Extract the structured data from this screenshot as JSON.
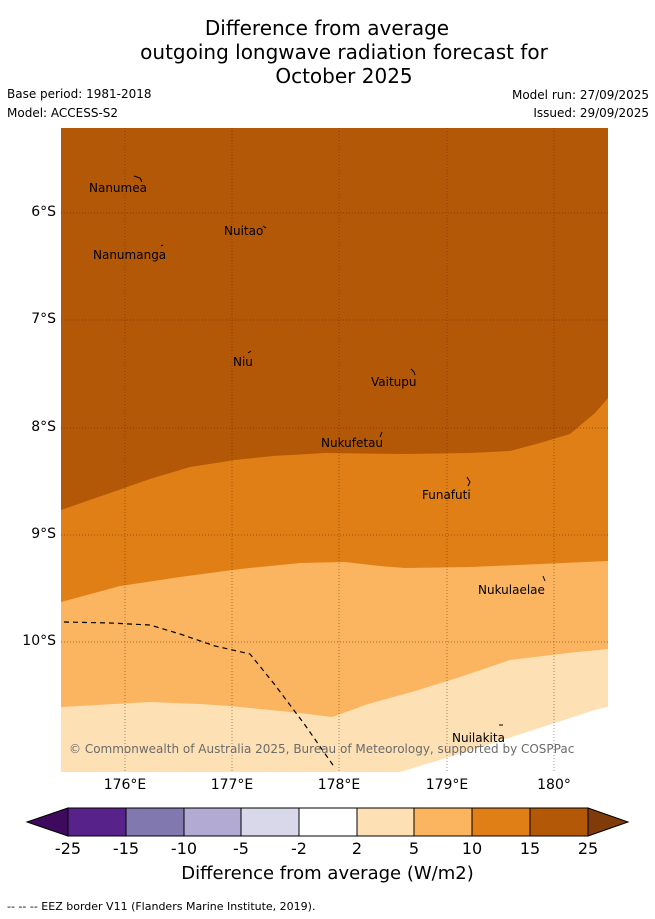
{
  "header": {
    "title_lines": [
      "Difference from average",
      "outgoing longwave radiation forecast for",
      "October 2025"
    ],
    "base_period": "Base period: 1981-2018",
    "model": "Model: ACCESS-S2",
    "model_run": "Model run: 27/09/2025",
    "issued": "Issued: 29/09/2025"
  },
  "map": {
    "y_ticks": [
      "6°S",
      "7°S",
      "8°S",
      "9°S",
      "10°S"
    ],
    "x_ticks": [
      "176°E",
      "177°E",
      "178°E",
      "179°E",
      "180°"
    ],
    "places": [
      {
        "name": "Nanumea"
      },
      {
        "name": "Nuitao"
      },
      {
        "name": "Nanumanga"
      },
      {
        "name": "Niu"
      },
      {
        "name": "Vaitupu"
      },
      {
        "name": "Nukufetau"
      },
      {
        "name": "Funafuti"
      },
      {
        "name": "Nukulaelae"
      },
      {
        "name": "Nuilakita"
      }
    ],
    "copyright": "© Commonwealth of Australia 2025, Bureau of Meteorology, supported by COSPPac"
  },
  "legend": {
    "labels": [
      "-25",
      "-15",
      "-10",
      "-5",
      "-2",
      "2",
      "5",
      "10",
      "15",
      "25"
    ],
    "colors": [
      "#3f0a5e",
      "#57238b",
      "#8278b0",
      "#b2aad2",
      "#d8d8ea",
      "#ffffff",
      "#fde0b4",
      "#fbb45f",
      "#e07f16",
      "#b35806",
      "#7f3b08"
    ],
    "title": "Difference from average (W/m2)"
  },
  "footnote": "-- -- -- EEZ border V11 (Flanders Marine Institute, 2019)."
}
